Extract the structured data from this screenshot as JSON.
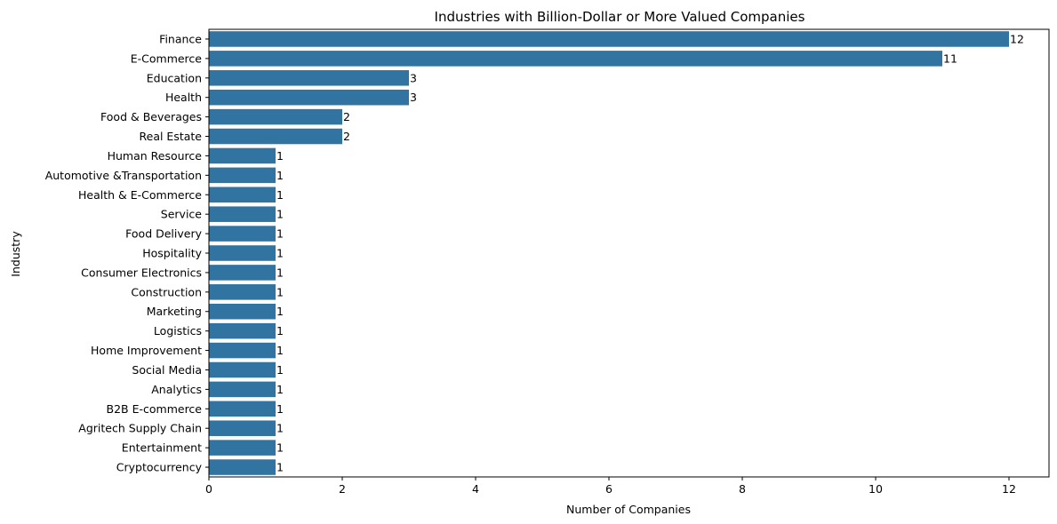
{
  "chart_data": {
    "type": "bar",
    "orientation": "horizontal",
    "title": "Industries with Billion-Dollar or More Valued Companies",
    "xlabel": "Number of Companies",
    "ylabel": "Industry",
    "xlim": [
      0,
      12.6
    ],
    "xticks": [
      0,
      2,
      4,
      6,
      8,
      10,
      12
    ],
    "grid": false,
    "bar_color": "#3274a1",
    "categories": [
      "Finance",
      "E-Commerce",
      "Education",
      "Health",
      "Food & Beverages",
      "Real Estate",
      "Human Resource",
      "Automotive &Transportation",
      "Health & E-Commerce",
      "Service",
      "Food Delivery",
      "Hospitality",
      "Consumer Electronics",
      "Construction",
      "Marketing",
      "Logistics",
      "Home Improvement",
      "Social Media",
      "Analytics",
      "B2B E-commerce",
      "Agritech Supply Chain",
      "Entertainment",
      "Cryptocurrency"
    ],
    "values": [
      12,
      11,
      3,
      3,
      2,
      2,
      1,
      1,
      1,
      1,
      1,
      1,
      1,
      1,
      1,
      1,
      1,
      1,
      1,
      1,
      1,
      1,
      1
    ]
  }
}
